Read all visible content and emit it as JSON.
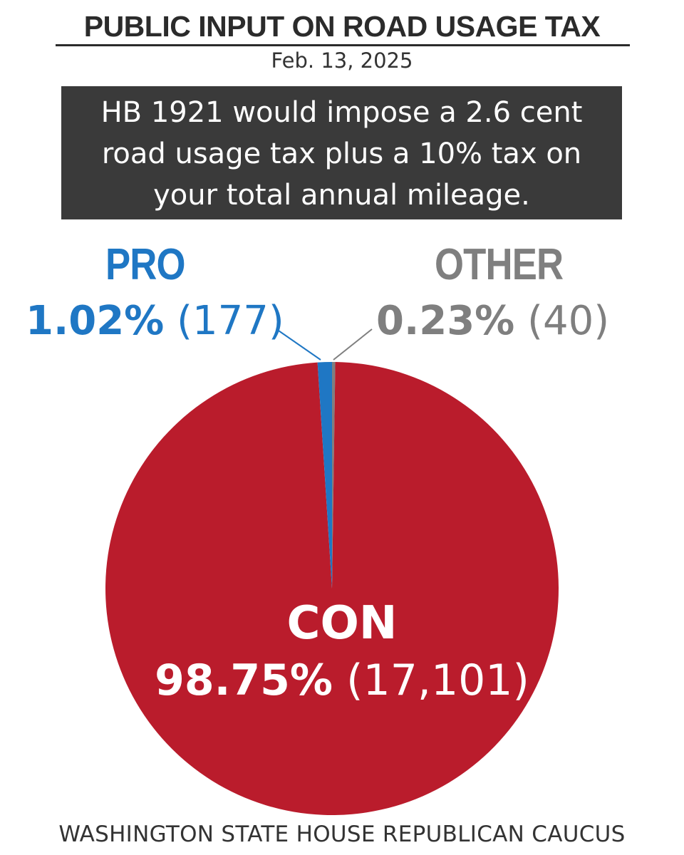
{
  "header": {
    "title": "PUBLIC INPUT ON ROAD USAGE TAX",
    "date": "Feb. 13, 2025",
    "description_lines": [
      "HB 1921 would impose a 2.6 cent",
      "road usage tax plus a 10% tax on",
      "your total annual mileage."
    ]
  },
  "chart_data": {
    "type": "pie",
    "slices": [
      {
        "name": "CON",
        "percent": 98.75,
        "count": 17101,
        "percent_label": "98.75%",
        "count_label": "(17,101)",
        "color": "#ba1c2c"
      },
      {
        "name": "PRO",
        "percent": 1.02,
        "count": 177,
        "percent_label": "1.02%",
        "count_label": "(177)",
        "color": "#1f77c4"
      },
      {
        "name": "OTHER",
        "percent": 0.23,
        "count": 40,
        "percent_label": "0.23%",
        "count_label": "(40)",
        "color": "#7f7f7f"
      }
    ]
  },
  "footer": {
    "source": "WASHINGTON STATE HOUSE REPUBLICAN CAUCUS"
  }
}
